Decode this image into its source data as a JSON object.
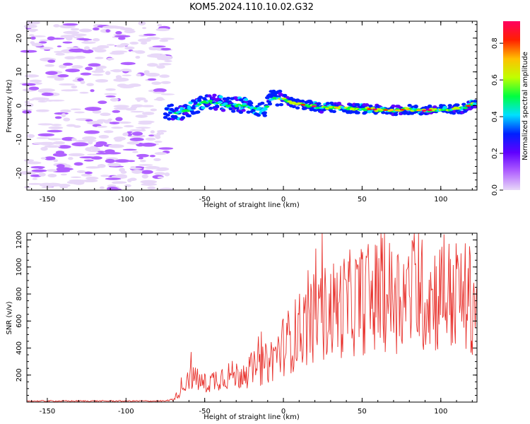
{
  "title": "KOM5.2024.110.10.02.G32",
  "chart_data": [
    {
      "type": "heatmap",
      "xlabel": "Height of straight line (km)",
      "ylabel": "Frequency (Hz)",
      "xlim": [
        -163,
        123
      ],
      "ylim": [
        -25,
        25
      ],
      "xticks": [
        -150,
        -100,
        -50,
        0,
        50,
        100
      ],
      "yticks": [
        -20,
        -10,
        0,
        10,
        20
      ],
      "colorbar": {
        "label": "Normalized spectral amplitude",
        "ticks": [
          0.0,
          0.2,
          0.4,
          0.6,
          0.8
        ],
        "range": [
          0,
          0.92
        ],
        "colormap": [
          "#e8d8f8",
          "#b060ff",
          "#6000ff",
          "#0020ff",
          "#00e0ff",
          "#00ff40",
          "#c0ff00",
          "#ffc000",
          "#ff2000",
          "#ff0060"
        ]
      },
      "ridge": {
        "x": [
          -72,
          -66,
          -60,
          -54,
          -48,
          -42,
          -36,
          -30,
          -24,
          -18,
          -12,
          -8,
          -4,
          0,
          6,
          12,
          18,
          24,
          30,
          36,
          42,
          48,
          54,
          60,
          66,
          72,
          78,
          84,
          90,
          96,
          102,
          108,
          114,
          120
        ],
        "y": [
          -2.0,
          -2.0,
          -1.2,
          0.3,
          1.2,
          0.8,
          0.2,
          0.2,
          0.2,
          -0.8,
          -1.2,
          2.0,
          2.3,
          2.0,
          0.8,
          0.3,
          0.0,
          -0.8,
          -0.4,
          -0.6,
          -0.8,
          -0.9,
          -1.0,
          -1.2,
          -1.3,
          -1.4,
          -1.1,
          -1.3,
          -1.5,
          -1.2,
          -1.2,
          -1.0,
          -0.8,
          0.5
        ]
      }
    },
    {
      "type": "line",
      "xlabel": "Height of straight line (km)",
      "ylabel": "SNR (v/v)",
      "xlim": [
        -163,
        123
      ],
      "ylim": [
        0,
        1250
      ],
      "xticks": [
        -150,
        -100,
        -50,
        0,
        50,
        100
      ],
      "yticks": [
        200,
        400,
        600,
        800,
        1000,
        1200
      ],
      "series": [
        {
          "color": "#e8322d",
          "envelope_x": [
            -163,
            -75,
            -70,
            -65,
            -60,
            -55,
            -50,
            -45,
            -40,
            -35,
            -30,
            -25,
            -20,
            -15,
            -10,
            -5,
            0,
            5,
            10,
            15,
            20,
            25,
            30,
            35,
            40,
            45,
            50,
            55,
            60,
            65,
            70,
            75,
            80,
            85,
            90,
            95,
            100,
            105,
            110,
            115,
            120,
            123
          ],
          "envelope_y": [
            8,
            8,
            20,
            90,
            200,
            160,
            130,
            160,
            190,
            200,
            200,
            210,
            240,
            260,
            290,
            350,
            420,
            470,
            530,
            580,
            620,
            650,
            680,
            700,
            720,
            740,
            760,
            770,
            780,
            790,
            790,
            790,
            800,
            800,
            790,
            790,
            800,
            790,
            780,
            770,
            760,
            760
          ]
        }
      ]
    }
  ]
}
